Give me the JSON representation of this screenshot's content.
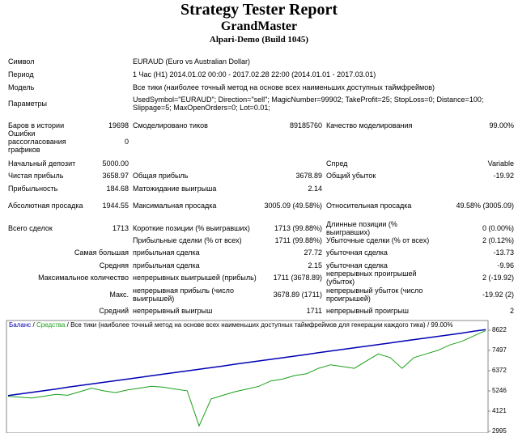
{
  "header": {
    "title": "Strategy Tester Report",
    "name": "GrandMaster",
    "server": "Alpari-Demo (Build 1045)"
  },
  "info": [
    {
      "label": "Символ",
      "value": "EURAUD (Euro vs Australian Dollar)"
    },
    {
      "label": "Период",
      "value": "1 Час (H1) 2014.01.02 00:00 - 2017.02.28 22:00 (2014.01.01 - 2017.03.01)"
    },
    {
      "label": "Модель",
      "value": "Все тики (наиболее точный метод на основе всех наименьших доступных таймфреймов)"
    },
    {
      "label": "Параметры",
      "value": "UsedSymbol=\"EURAUD\"; Direction=\"sell\"; MagicNumber=99902; TakeProfit=25; StopLoss=0; Distance=100; Slippage=5; MaxOpenOrders=0; Lot=0.01;"
    }
  ],
  "stats": [
    [
      "Баров в истории",
      "19698",
      "Смоделировано тиков",
      "89185760",
      "Качество моделирования",
      "99.00%"
    ],
    [
      "Ошибки рассогласования графиков",
      "0",
      null,
      null,
      null,
      null
    ],
    [
      "Начальный депозит",
      "5000.00",
      null,
      null,
      "Спред",
      "Variable"
    ],
    [
      "Чистая прибыль",
      "3658.97",
      "Общая прибыль",
      "3678.89",
      "Общий убыток",
      "-19.92"
    ],
    [
      "Прибыльность",
      "184.68",
      "Матожидание выигрыша",
      "2.14",
      null,
      null
    ],
    [
      "Абсолютная просадка",
      "1944.55",
      "Максимальная просадка",
      "3005.09 (49.58%)",
      "Относительная просадка",
      "49.58% (3005.09)"
    ],
    [
      "Всего сделок",
      "1713",
      "Короткие позиции (% выигравших)",
      "1713 (99.88%)",
      "Длинные позиции (% выигравших)",
      "0 (0.00%)"
    ],
    [
      null,
      null,
      "Прибыльные сделки (% от всех)",
      "1711 (99.88%)",
      "Убыточные сделки (% от всех)",
      "2 (0.12%)"
    ],
    [
      "Самая большая",
      null,
      "прибыльная сделка",
      "27.72",
      "убыточная сделка",
      "-13.73"
    ],
    [
      "Средняя",
      null,
      "прибыльная сделка",
      "2.15",
      "убыточная сделка",
      "-9.96"
    ],
    [
      "Максимальное количество",
      null,
      "непрерывных выигрышей (прибыль)",
      "1711 (3678.89)",
      "непрерывных проигрышей (убыток)",
      "2 (-19.92)"
    ],
    [
      "Макс.",
      null,
      "непрерывная прибыль (число выигрышей)",
      "3678.89 (1711)",
      "непрерывный убыток (число проигрышей)",
      "-19.92 (2)"
    ],
    [
      "Средний",
      null,
      "непрерывный выигрыш",
      "1711",
      "непрерывный проигрыш",
      "2"
    ]
  ],
  "chart": {
    "type": "line",
    "separator": "/",
    "note": "Все тики (наиболее точный метод на основе всех наименьших доступных таймфреймов для генерации каждого тика)",
    "quality": "99.00%",
    "ylim": [
      2905,
      8755
    ],
    "yticks": [
      2995,
      4121,
      5246,
      6372,
      7497,
      8622
    ],
    "grid": false,
    "series": [
      {
        "name": "Баланс",
        "color": "#0000b4",
        "values": [
          4990,
          5080,
          5170,
          5260,
          5350,
          5450,
          5540,
          5630,
          5720,
          5810,
          5900,
          5990,
          6090,
          6180,
          6270,
          6360,
          6450,
          6540,
          6630,
          6730,
          6820,
          6910,
          7000,
          7090,
          7180,
          7270,
          7370,
          7460,
          7550,
          7640,
          7730,
          7820,
          7910,
          8010,
          8100,
          8190,
          8280,
          8370,
          8460,
          8560,
          8650
        ]
      },
      {
        "name": "Средства",
        "color": "#18a018",
        "values": [
          4950,
          4900,
          4850,
          4950,
          5050,
          5000,
          5200,
          5400,
          5250,
          5150,
          5300,
          5400,
          5500,
          5450,
          5350,
          5250,
          3300,
          4800,
          5000,
          5200,
          5350,
          5500,
          5800,
          5900,
          6100,
          6200,
          6500,
          6700,
          6600,
          6500,
          6900,
          7300,
          7100,
          6500,
          7100,
          7300,
          7500,
          7800,
          8000,
          8300,
          8600
        ]
      }
    ]
  }
}
